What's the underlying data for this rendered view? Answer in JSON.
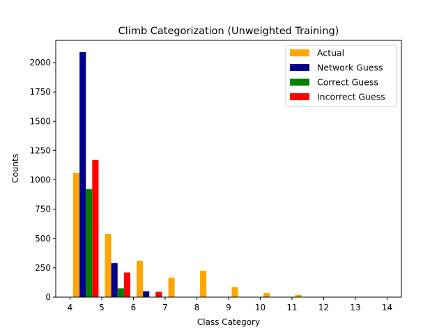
{
  "chart_data": {
    "type": "bar",
    "title": "Climb Categorization (Unweighted Training)",
    "xlabel": "Class Category",
    "ylabel": "Counts",
    "x_ticks": [
      "4",
      "5",
      "6",
      "7",
      "8",
      "9",
      "10",
      "11",
      "12",
      "13",
      "14"
    ],
    "y_ticks": [
      "0",
      "250",
      "500",
      "750",
      "1000",
      "1250",
      "1500",
      "1750",
      "2000"
    ],
    "xlim": [
      3.55,
      14.45
    ],
    "ylim": [
      0,
      2190
    ],
    "bar_width": 0.2,
    "legend_position": "top-right",
    "series": [
      {
        "name": "Actual",
        "color": "#ffa500",
        "x": [
          4.2,
          5.2,
          6.2,
          7.2,
          8.2,
          9.2,
          10.2,
          11.2
        ],
        "values": [
          1060,
          540,
          310,
          165,
          225,
          85,
          35,
          20
        ]
      },
      {
        "name": "Network Guess",
        "color": "#00008b",
        "x": [
          4.4,
          5.4,
          6.4
        ],
        "values": [
          2090,
          290,
          50
        ]
      },
      {
        "name": "Correct Guess",
        "color": "#008000",
        "x": [
          4.6,
          5.6
        ],
        "values": [
          920,
          75
        ]
      },
      {
        "name": "Incorrect Guess",
        "color": "#ff0000",
        "x": [
          4.8,
          5.8,
          6.8
        ],
        "values": [
          1170,
          210,
          45
        ]
      }
    ]
  }
}
